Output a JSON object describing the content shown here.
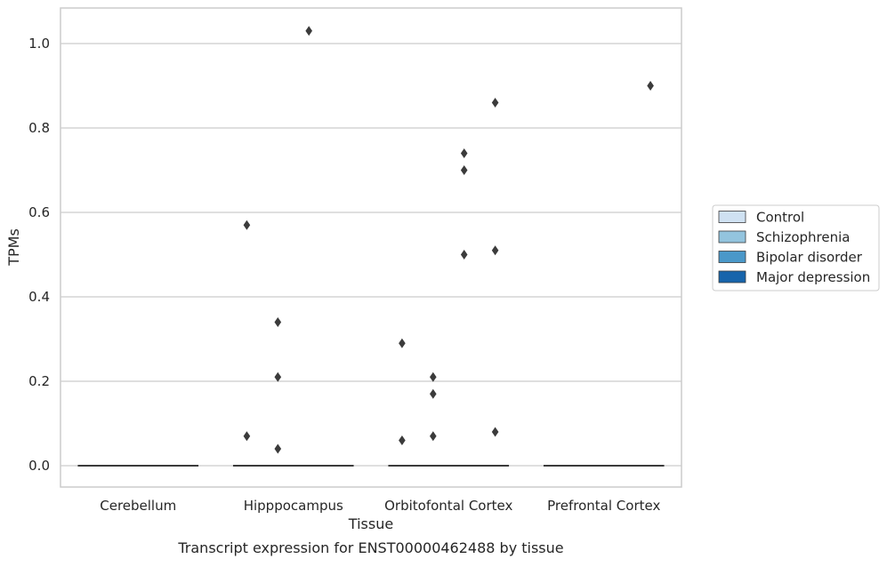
{
  "chart_data": {
    "type": "box",
    "title": "",
    "caption": "Transcript expression for ENST00000462488 by tissue",
    "xlabel": "Tissue",
    "ylabel": "TPMs",
    "ylim": [
      -0.05,
      1.08
    ],
    "yticks": [
      "0.0",
      "0.2",
      "0.4",
      "0.6",
      "0.8",
      "1.0"
    ],
    "grid": true,
    "legend_placement": "right",
    "categories": [
      "Cerebellum",
      "Hipppocampus",
      "Orbitofontal Cortex",
      "Prefrontal Cortex"
    ],
    "series": [
      {
        "name": "Control",
        "color": "#cfe1f2"
      },
      {
        "name": "Schizophrenia",
        "color": "#93c4de"
      },
      {
        "name": "Bipolar disorder",
        "color": "#4a98c9"
      },
      {
        "name": "Major depression",
        "color": "#1764ab"
      }
    ],
    "medians": [
      0.0,
      0.0,
      0.0,
      0.0
    ],
    "outliers": [
      {
        "category": "Hipppocampus",
        "series": "Control",
        "values": [
          0.57,
          0.07
        ]
      },
      {
        "category": "Hipppocampus",
        "series": "Schizophrenia",
        "values": [
          0.34,
          0.21,
          0.04
        ]
      },
      {
        "category": "Hipppocampus",
        "series": "Bipolar disorder",
        "values": [
          1.03
        ]
      },
      {
        "category": "Orbitofontal Cortex",
        "series": "Control",
        "values": [
          0.29,
          0.06
        ]
      },
      {
        "category": "Orbitofontal Cortex",
        "series": "Schizophrenia",
        "values": [
          0.21,
          0.17,
          0.07
        ]
      },
      {
        "category": "Orbitofontal Cortex",
        "series": "Bipolar disorder",
        "values": [
          0.74,
          0.7,
          0.5
        ]
      },
      {
        "category": "Orbitofontal Cortex",
        "series": "Major depression",
        "values": [
          0.86,
          0.51,
          0.08
        ]
      },
      {
        "category": "Prefrontal Cortex",
        "series": "Major depression",
        "values": [
          0.9
        ]
      }
    ],
    "outlier_color": "#3b3b3b"
  }
}
